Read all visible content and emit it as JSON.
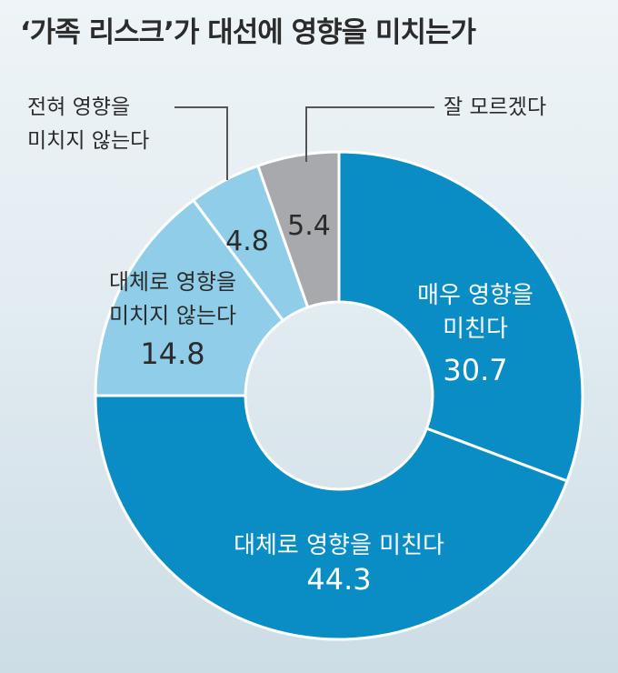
{
  "chart_data": {
    "type": "pie",
    "title": "‘가족 리스크’가 대선에 영향을 미치는가",
    "categories": [
      "매우 영향을 미친다",
      "대체로 영향을 미친다",
      "대체로 영향을 미치지 않는다",
      "전혀 영향을 미치지 않는다",
      "잘 모르겠다"
    ],
    "values": [
      30.7,
      44.3,
      14.8,
      4.8,
      5.4
    ],
    "value_labels": [
      "30.7",
      "44.3",
      "14.8",
      "4.8",
      "5.4"
    ],
    "colors": [
      "#0a8dc5",
      "#0a8dc5",
      "#8fcde9",
      "#8fcde9",
      "#a7a9ac"
    ],
    "label_lines": [
      [
        "매우 영향을",
        "미친다"
      ],
      [
        "대체로 영향을 미친다"
      ],
      [
        "대체로 영향을",
        "미치지 않는다"
      ],
      [
        "전혀 영향을",
        "미치지 않는다"
      ],
      [
        "잘 모르겠다"
      ]
    ],
    "donut": true
  }
}
